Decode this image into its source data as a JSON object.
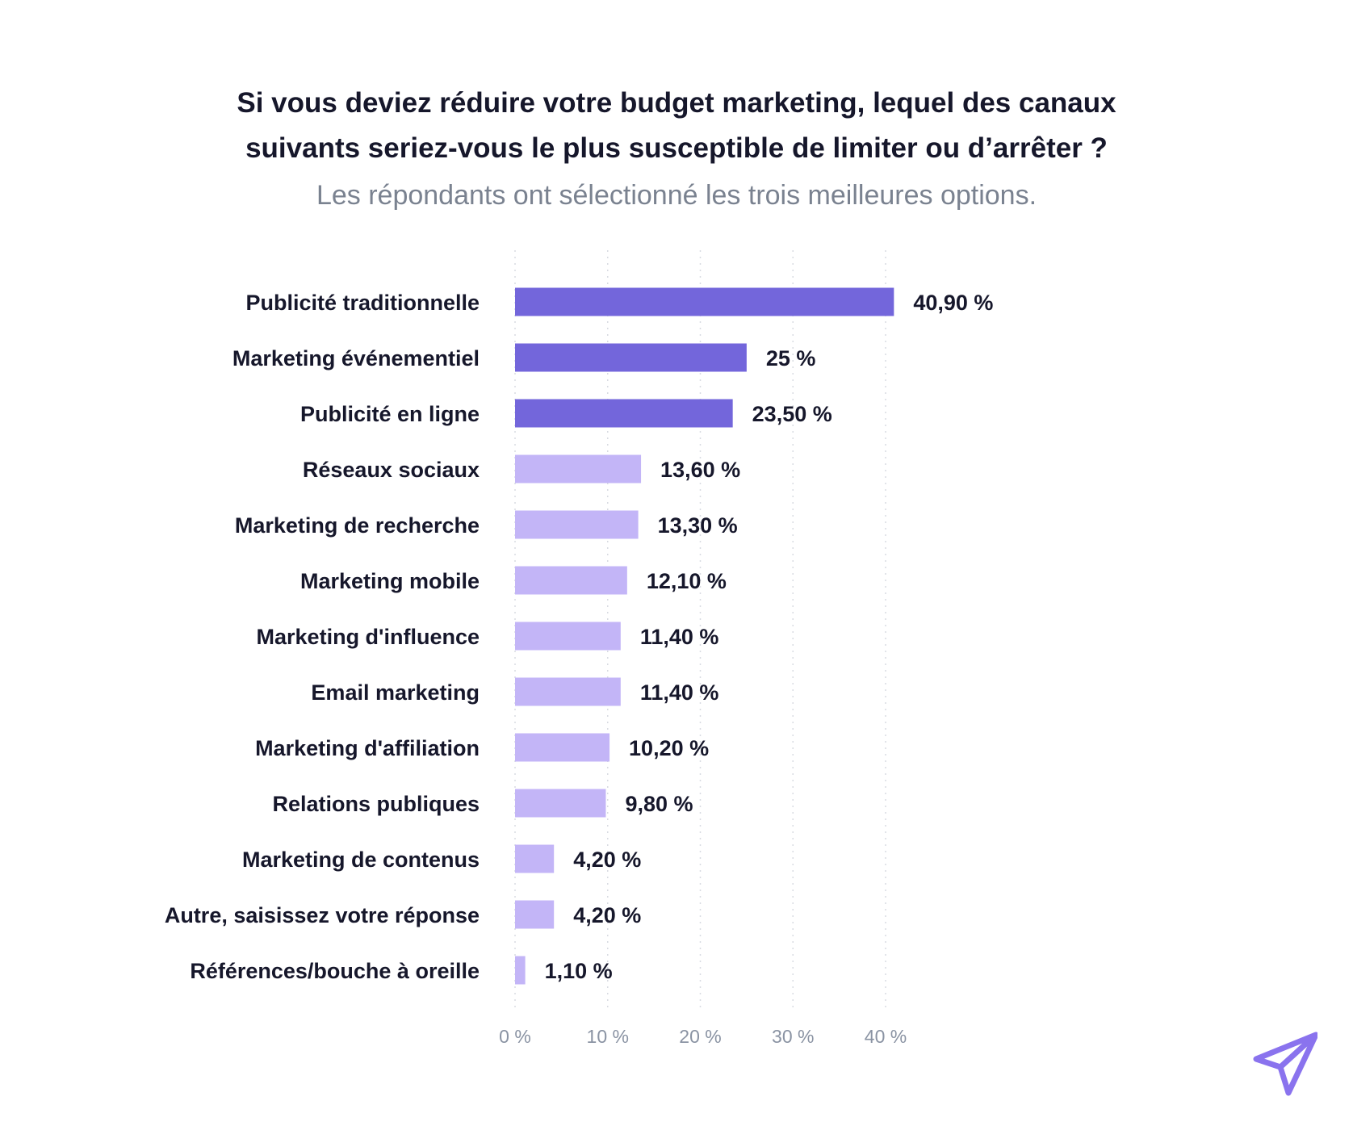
{
  "chart_data": {
    "type": "bar",
    "orientation": "horizontal",
    "title_line1": "Si vous deviez réduire votre budget marketing, lequel des canaux",
    "title_line2": "suivants seriez-vous le plus susceptible de limiter ou d’arrêter ?",
    "subtitle": "Les répondants ont sélectionné les trois meilleures options.",
    "categories": [
      "Publicité traditionnelle",
      "Marketing événementiel",
      "Publicité en ligne",
      "Réseaux sociaux",
      "Marketing de recherche",
      "Marketing mobile",
      "Marketing d'influence",
      "Email marketing",
      "Marketing d'affiliation",
      "Relations publiques",
      "Marketing de contenus",
      "Autre, saisissez votre réponse",
      "Références/bouche à oreille"
    ],
    "values": [
      40.9,
      25,
      23.5,
      13.6,
      13.3,
      12.1,
      11.4,
      11.4,
      10.2,
      9.8,
      4.2,
      4.2,
      1.1
    ],
    "value_labels": [
      "40,90 %",
      "25 %",
      "23,50 %",
      "13,60 %",
      "13,30 %",
      "12,10 %",
      "11,40 %",
      "11,40 %",
      "10,20 %",
      "9,80 %",
      "4,20 %",
      "4,20 %",
      "1,10 %"
    ],
    "highlight_count": 3,
    "xlim": [
      0,
      40
    ],
    "xticks": [
      0,
      10,
      20,
      30,
      40
    ],
    "xtick_labels": [
      "0 %",
      "10 %",
      "20 %",
      "30 %",
      "40 %"
    ],
    "xlabel": "",
    "ylabel": "",
    "grid": true
  },
  "colors": {
    "highlight": "#7366db",
    "normal": "#c3b5f7",
    "text": "#16172b",
    "subtitle": "#7a8290",
    "logo": "#8a73ee"
  },
  "logo": {
    "icon": "paper-plane-icon"
  }
}
